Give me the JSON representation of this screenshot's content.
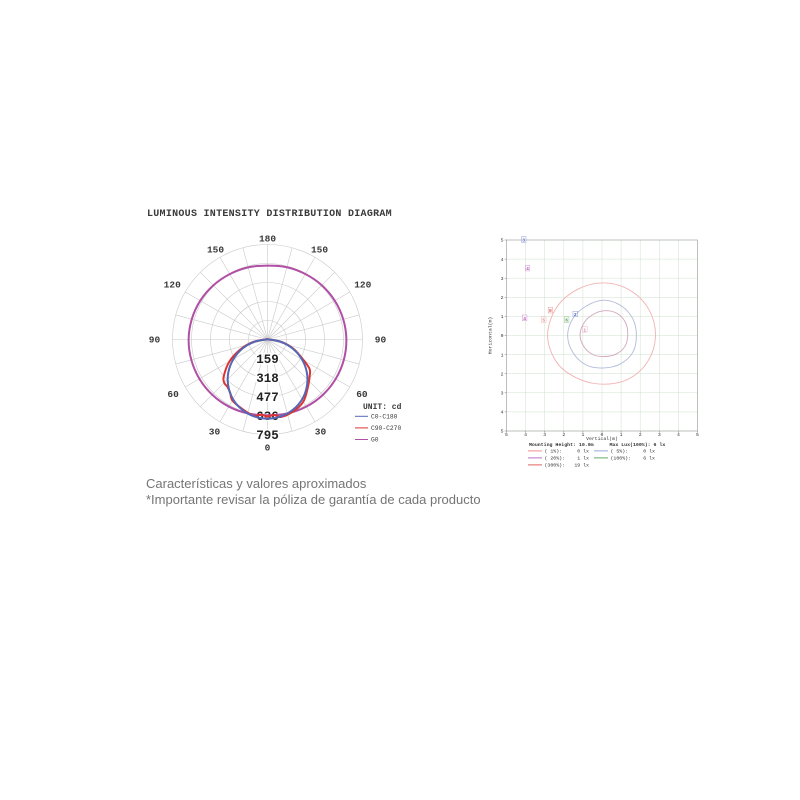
{
  "page": {
    "title": "LUMINOUS INTENSITY DISTRIBUTION DIAGRAM",
    "footer_line1": "Características y valores aproximados",
    "footer_line2": "*Importante revisar la póliza de garantía de cada producto"
  },
  "chart_data": [
    {
      "type": "polar_intensity",
      "title": "LUMINOUS INTENSITY DISTRIBUTION DIAGRAM",
      "unit_label": "UNIT: cd",
      "ring_values": [
        159,
        318,
        477,
        636,
        795
      ],
      "angle_labels_deg": [
        0,
        30,
        60,
        90,
        120,
        150,
        180
      ],
      "angle_labels_mirrored": true,
      "spoke_step_deg": 15,
      "grid_color": "#c9c9c9",
      "series": [
        {
          "name": "C0-C180",
          "color": "#5567b5",
          "points": [
            [
              -90,
              12
            ],
            [
              -80,
              115
            ],
            [
              -70,
              224
            ],
            [
              -60,
              330
            ],
            [
              -50,
              428
            ],
            [
              -40,
              510
            ],
            [
              -30,
              577
            ],
            [
              -20,
              624
            ],
            [
              -10,
              653
            ],
            [
              0,
              663
            ],
            [
              10,
              653
            ],
            [
              20,
              625
            ],
            [
              30,
              579
            ],
            [
              40,
              512
            ],
            [
              50,
              430
            ],
            [
              60,
              333
            ],
            [
              70,
              226
            ],
            [
              80,
              116
            ],
            [
              90,
              12
            ]
          ]
        },
        {
          "name": "C90-C270",
          "color": "#dd3430",
          "points": [
            [
              -90,
              18
            ],
            [
              -80,
              125
            ],
            [
              -70,
              240
            ],
            [
              -60,
              368
            ],
            [
              -50,
              478
            ],
            [
              -45,
              512
            ],
            [
              -40,
              520
            ],
            [
              -35,
              545
            ],
            [
              -30,
              588
            ],
            [
              -20,
              618
            ],
            [
              -10,
              650
            ],
            [
              -5,
              630
            ],
            [
              0,
              645
            ],
            [
              5,
              633
            ],
            [
              10,
              658
            ],
            [
              20,
              638
            ],
            [
              30,
              600
            ],
            [
              40,
              525
            ],
            [
              50,
              462
            ],
            [
              55,
              430
            ],
            [
              60,
              352
            ],
            [
              70,
              235
            ],
            [
              80,
              122
            ],
            [
              90,
              16
            ]
          ]
        },
        {
          "name": "G0",
          "color": "#b04fa5",
          "points": [
            [
              -180,
              618
            ],
            [
              -165,
              625
            ],
            [
              -150,
              632
            ],
            [
              -135,
              641
            ],
            [
              -120,
              650
            ],
            [
              -105,
              656
            ],
            [
              -90,
              660
            ],
            [
              -75,
              660
            ],
            [
              -60,
              658
            ],
            [
              -45,
              654
            ],
            [
              -30,
              648
            ],
            [
              -15,
              640
            ],
            [
              0,
              634
            ],
            [
              15,
              641
            ],
            [
              30,
              649
            ],
            [
              45,
              655
            ],
            [
              60,
              659
            ],
            [
              75,
              661
            ],
            [
              90,
              660
            ],
            [
              105,
              656
            ],
            [
              120,
              650
            ],
            [
              135,
              642
            ],
            [
              150,
              633
            ],
            [
              165,
              626
            ]
          ]
        }
      ]
    },
    {
      "type": "isolux_contour",
      "xlabel": "Vertical(m)",
      "ylabel": "Horizontal(m)",
      "xlim": [
        -5,
        5
      ],
      "ylim": [
        -5,
        5
      ],
      "x_tick_labels": [
        "5",
        "4",
        "3",
        "2",
        "1",
        "0",
        "1",
        "2",
        "3",
        "4",
        "5"
      ],
      "y_tick_labels": [
        "5",
        "4",
        "3",
        "2",
        "1",
        "0",
        "1",
        "2",
        "3",
        "4",
        "5"
      ],
      "grid_color": "#cfe2cf",
      "frame_color": "#ababab",
      "info": {
        "mounting_label": "Mounting Height:",
        "mounting_value": "10.0m",
        "maxlux_label": "Max Lux(100%):",
        "maxlux_value": "6 lx"
      },
      "legend": [
        {
          "label": "(  1%):",
          "value": "0 lx",
          "color": "#ee8080"
        },
        {
          "label": "(  5%):",
          "value": "0 lx",
          "color": "#8ca0dc"
        },
        {
          "label": "( 20%):",
          "value": "1 lx",
          "color": "#b060c0"
        },
        {
          "label": "(100%):",
          "value": "6 lx",
          "color": "#58a058"
        },
        {
          "label": "(300%):",
          "value": "19 lx",
          "color": "#e05050"
        }
      ],
      "contours": [
        {
          "name": "outer",
          "color": "#f2b2b2",
          "center": [
            0.15,
            -0.05
          ],
          "radii_every_30deg": [
            2.65,
            2.7,
            2.75,
            2.8,
            2.85,
            2.95,
            3.0,
            2.85,
            2.6,
            2.5,
            2.55,
            2.6
          ]
        },
        {
          "name": "middle",
          "color": "#b2bcd8",
          "center": [
            0.1,
            0
          ],
          "radii_every_30deg": [
            1.7,
            1.75,
            1.8,
            1.85,
            1.8,
            1.85,
            1.9,
            1.85,
            1.8,
            1.7,
            1.72,
            1.75
          ]
        },
        {
          "name": "inner",
          "color": "#d2a6bc",
          "center": [
            0.15,
            0.05
          ],
          "radii_every_30deg": [
            1.2,
            1.25,
            1.28,
            1.25,
            1.22,
            1.25,
            1.3,
            1.27,
            1.22,
            1.15,
            1.18,
            1.22
          ]
        }
      ],
      "point_labels": [
        {
          "text": "3",
          "x": -4.1,
          "y": 5.0,
          "color": "#4a5fc0"
        },
        {
          "text": "4",
          "x": -3.9,
          "y": 3.5,
          "color": "#b84fb8"
        },
        {
          "text": "0",
          "x": -2.7,
          "y": 1.3,
          "color": "#e05555"
        },
        {
          "text": "4",
          "x": -4.05,
          "y": 0.9,
          "color": "#b84fb8"
        },
        {
          "text": "5",
          "x": -3.05,
          "y": 0.8,
          "color": "#e88888"
        },
        {
          "text": "6",
          "x": -1.85,
          "y": 0.8,
          "color": "#4d9e4d"
        },
        {
          "text": "2",
          "x": -1.4,
          "y": 1.1,
          "color": "#4a5fc0"
        },
        {
          "text": "1",
          "x": -0.9,
          "y": 0.3,
          "color": "#d583a8"
        }
      ]
    }
  ]
}
